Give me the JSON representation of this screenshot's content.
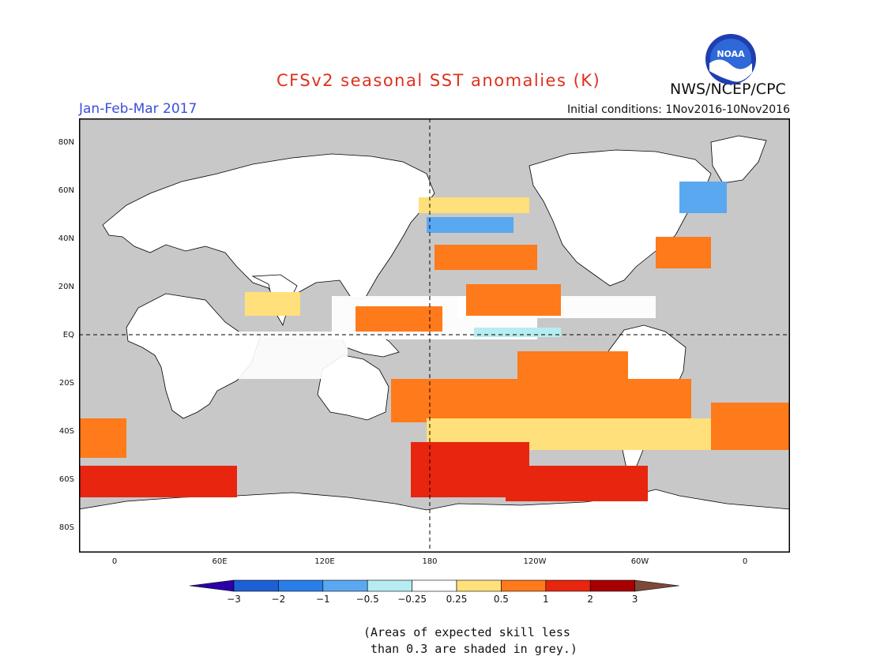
{
  "header": {
    "title": "CFSv2 seasonal SST anomalies (K)",
    "agency": "NWS/NCEP/CPC",
    "period": "Jan-Feb-Mar 2017",
    "initial_conditions": "Initial conditions: 1Nov2016-10Nov2016",
    "logo_text": "NOAA"
  },
  "map": {
    "projection": "equirectangular",
    "land_color": "#ffffff",
    "low_skill_color": "#c8c8c8",
    "lat_labels": [
      "80N",
      "60N",
      "40N",
      "20N",
      "EQ",
      "20S",
      "40S",
      "60S",
      "80S"
    ],
    "lon_labels": [
      "0",
      "60E",
      "120E",
      "180",
      "120W",
      "60W",
      "0"
    ]
  },
  "legend": {
    "tick_labels": [
      "−3",
      "−2",
      "−1",
      "−0.5",
      "−0.25",
      "0.25",
      "0.5",
      "1",
      "2",
      "3"
    ],
    "colors": [
      "#2b00a8",
      "#1d5fd4",
      "#2b7ee8",
      "#5aa8f0",
      "#b6ecf2",
      "#ffffff",
      "#ffe07a",
      "#ff7a1a",
      "#e8250f",
      "#a80000",
      "#7b4a3a"
    ]
  },
  "note": {
    "line1": "(Areas of expected skill less",
    "line2": " than 0.3 are shaded in grey.)"
  }
}
